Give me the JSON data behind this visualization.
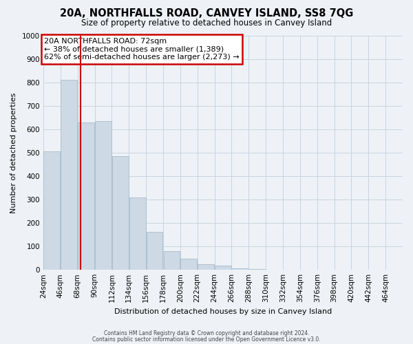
{
  "title": "20A, NORTHFALLS ROAD, CANVEY ISLAND, SS8 7QG",
  "subtitle": "Size of property relative to detached houses in Canvey Island",
  "bar_heights": [
    505,
    810,
    630,
    635,
    485,
    310,
    163,
    80,
    48,
    25,
    18,
    5,
    3,
    1,
    0,
    1,
    0,
    0,
    0,
    0
  ],
  "bin_labels": [
    "24sqm",
    "46sqm",
    "68sqm",
    "90sqm",
    "112sqm",
    "134sqm",
    "156sqm",
    "178sqm",
    "200sqm",
    "222sqm",
    "244sqm",
    "266sqm",
    "288sqm",
    "310sqm",
    "332sqm",
    "354sqm",
    "376sqm",
    "398sqm",
    "420sqm",
    "442sqm",
    "464sqm"
  ],
  "bin_edges": [
    24,
    46,
    68,
    90,
    112,
    134,
    156,
    178,
    200,
    222,
    244,
    266,
    288,
    310,
    332,
    354,
    376,
    398,
    420,
    442,
    464
  ],
  "bar_color": "#cdd9e5",
  "bar_edge_color": "#a8bccb",
  "vline_x": 72,
  "vline_color": "#cc0000",
  "ylabel": "Number of detached properties",
  "xlabel": "Distribution of detached houses by size in Canvey Island",
  "ylim": [
    0,
    1000
  ],
  "yticks": [
    0,
    100,
    200,
    300,
    400,
    500,
    600,
    700,
    800,
    900,
    1000
  ],
  "annotation_title": "20A NORTHFALLS ROAD: 72sqm",
  "annotation_line1": "← 38% of detached houses are smaller (1,389)",
  "annotation_line2": "62% of semi-detached houses are larger (2,273) →",
  "footer1": "Contains HM Land Registry data © Crown copyright and database right 2024.",
  "footer2": "Contains public sector information licensed under the Open Government Licence v3.0.",
  "bg_color": "#eef2f6",
  "plot_bg_color": "#eef2f6",
  "grid_color": "#c8d4de"
}
